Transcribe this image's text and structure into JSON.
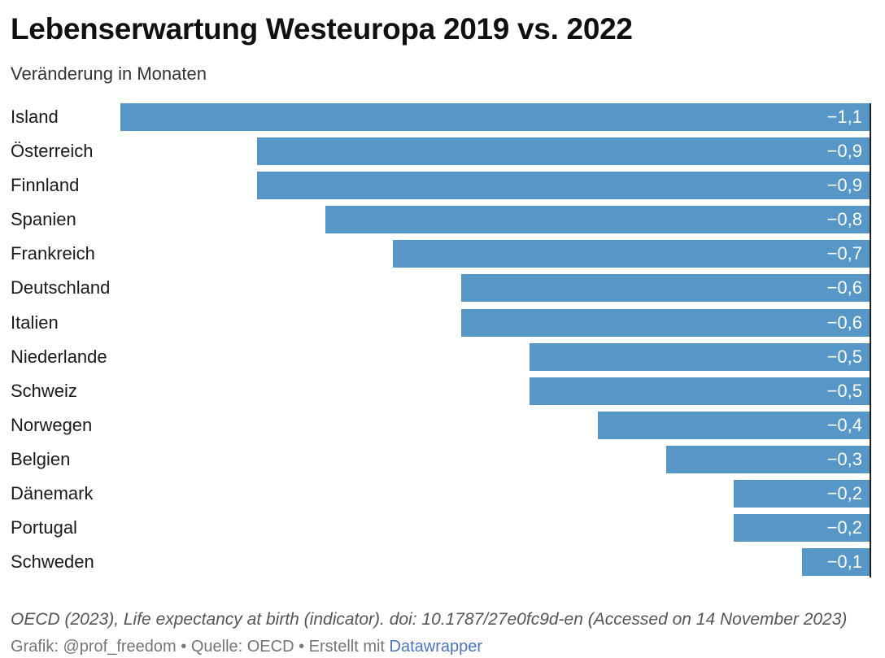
{
  "header": {
    "title": "Lebenserwartung Westeuropa 2019 vs. 2022",
    "subtitle": "Veränderung in Monaten"
  },
  "chart_data": {
    "type": "bar",
    "orientation": "horizontal",
    "title": "Lebenserwartung Westeuropa 2019 vs. 2022",
    "subtitle": "Veränderung in Monaten",
    "xlabel": "",
    "ylabel": "",
    "unit": "Monate",
    "categories": [
      "Island",
      "Österreich",
      "Finnland",
      "Spanien",
      "Frankreich",
      "Deutschland",
      "Italien",
      "Niederlande",
      "Schweiz",
      "Norwegen",
      "Belgien",
      "Dänemark",
      "Portugal",
      "Schweden"
    ],
    "values": [
      -1.1,
      -0.9,
      -0.9,
      -0.8,
      -0.7,
      -0.6,
      -0.6,
      -0.5,
      -0.5,
      -0.4,
      -0.3,
      -0.2,
      -0.2,
      -0.1
    ],
    "value_labels": [
      "−1,1",
      "−0,9",
      "−0,9",
      "−0,8",
      "−0,7",
      "−0,6",
      "−0,6",
      "−0,5",
      "−0,5",
      "−0,4",
      "−0,3",
      "−0,2",
      "−0,2",
      "−0,1"
    ],
    "xlim": [
      -1.1,
      0
    ],
    "bars_anchored_at": "zero-line-right",
    "grid": false,
    "legend": "none",
    "colors": {
      "bar": "#5697c8",
      "value_text": "#ffffff",
      "zero_axis_line": "#1f1f1f"
    }
  },
  "footer": {
    "source_line": "OECD (2023), Life expectancy at birth (indicator). doi: 10.1787/27e0fc9d-en (Accessed on 14 November 2023)",
    "credit_prefix": "Grafik: @prof_freedom • Quelle: OECD • Erstellt mit ",
    "credit_link": "Datawrapper",
    "credit_link_color": "#4d74c1"
  }
}
